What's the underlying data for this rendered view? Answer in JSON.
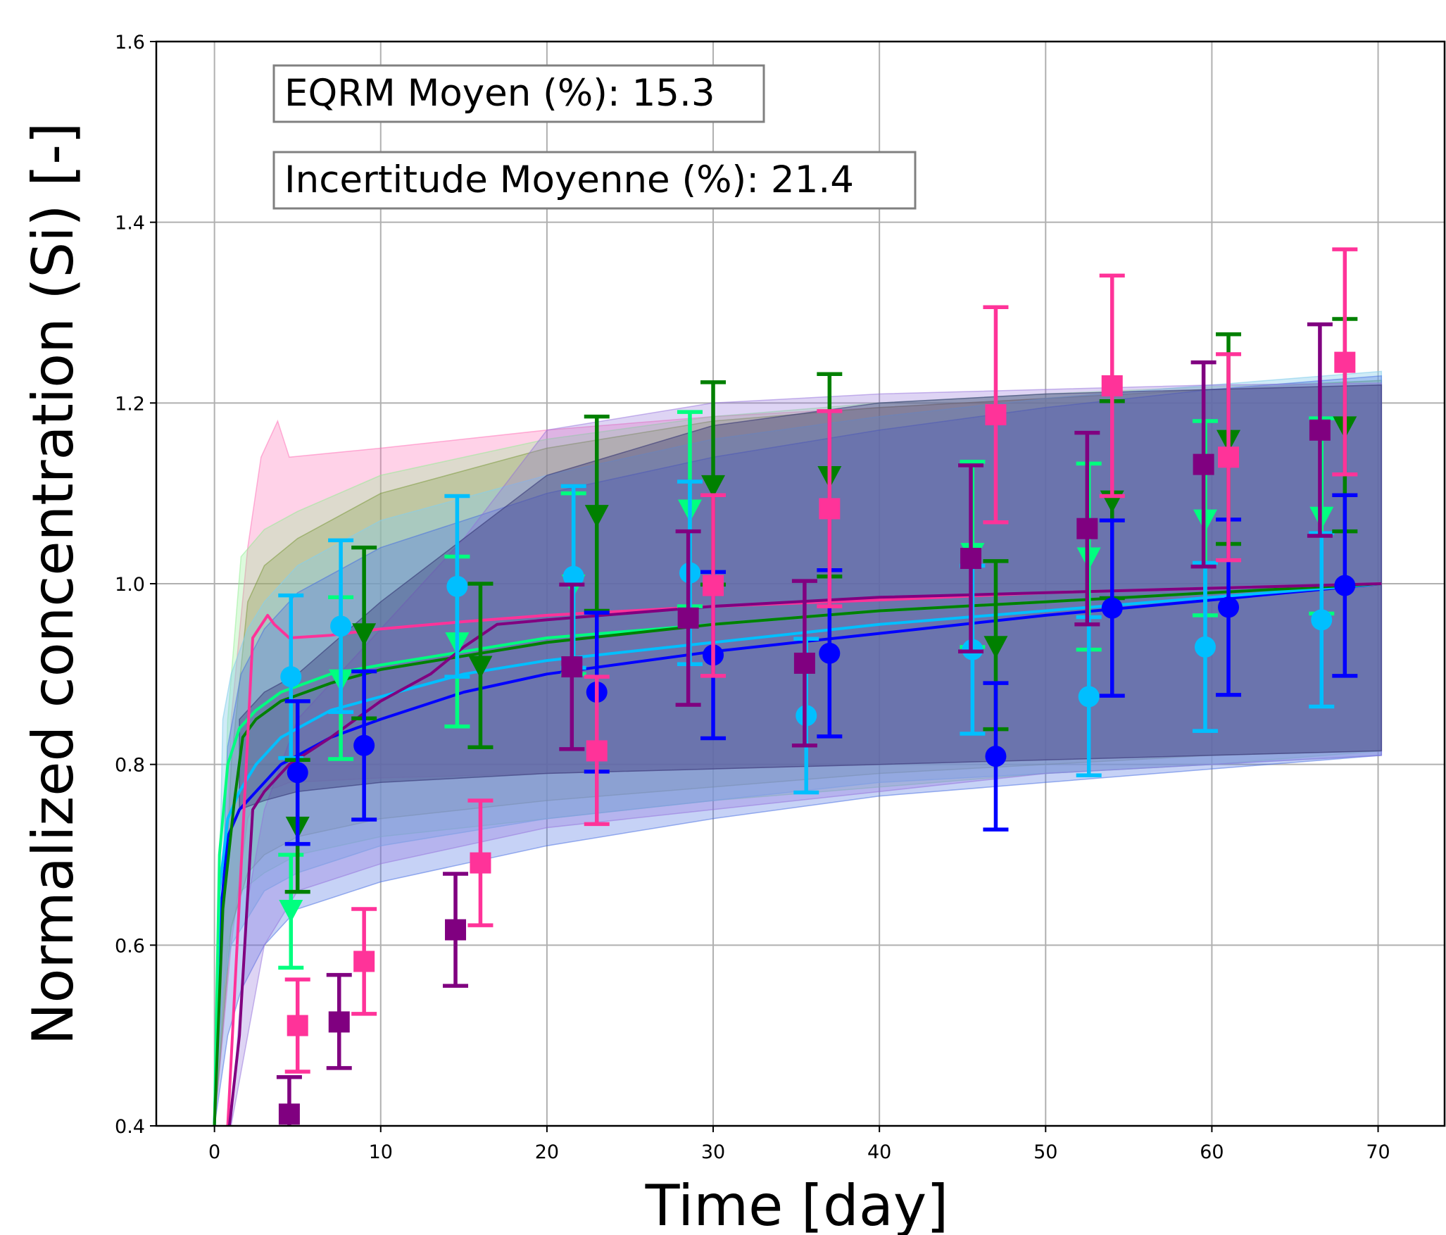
{
  "chart_data": {
    "type": "scatter",
    "xlabel": "Time [day]",
    "ylabel": "Normalized concentration (Si) [-]",
    "xlim": [
      -3.5,
      74
    ],
    "ylim": [
      0.4,
      1.6
    ],
    "x_ticks": [
      0,
      10,
      20,
      30,
      40,
      50,
      60,
      70
    ],
    "y_ticks": [
      0.4,
      0.6,
      0.8,
      1.0,
      1.2,
      1.4,
      1.6
    ],
    "x_tick_labels": [
      "0",
      "10",
      "20",
      "30",
      "40",
      "50",
      "60",
      "70"
    ],
    "y_tick_labels": [
      "0.4",
      "0.6",
      "0.8",
      "1.0",
      "1.2",
      "1.4",
      "1.6"
    ],
    "grid": true,
    "annotations": [
      "EQRM Moyen (%): 15.3",
      "Incertitude Moyenne (%): 21.4"
    ],
    "colors": {
      "pink": "#ff3399",
      "purple": "#800080",
      "green": "#008000",
      "light_green": "#00ff7f",
      "cyan": "#00bfff",
      "blue": "#0000ff"
    },
    "bands": [
      {
        "color": "#ff69b4",
        "opacity": 0.3,
        "x": [
          0,
          1,
          2,
          2.8,
          3.8,
          4.5,
          10,
          20,
          30,
          40,
          50,
          60,
          70.2
        ],
        "upper": [
          0.4,
          0.85,
          1.04,
          1.14,
          1.18,
          1.14,
          1.15,
          1.17,
          1.185,
          1.195,
          1.205,
          1.215,
          1.22
        ],
        "lower": [
          0.4,
          0.6,
          0.74,
          0.77,
          0.775,
          0.78,
          0.785,
          0.79,
          0.795,
          0.8,
          0.805,
          0.81,
          0.815
        ]
      },
      {
        "color": "#90ee90",
        "opacity": 0.3,
        "x": [
          0,
          0.8,
          1.6,
          3,
          5,
          10,
          20,
          30,
          40,
          50,
          60,
          70.2
        ],
        "upper": [
          0.4,
          0.85,
          1.03,
          1.06,
          1.08,
          1.12,
          1.16,
          1.185,
          1.2,
          1.21,
          1.218,
          1.225
        ],
        "lower": [
          0.4,
          0.6,
          0.66,
          0.68,
          0.7,
          0.72,
          0.74,
          0.76,
          0.775,
          0.79,
          0.8,
          0.815
        ]
      },
      {
        "color": "#6b8e23",
        "opacity": 0.25,
        "x": [
          0,
          1,
          2,
          3,
          5,
          10,
          20,
          30,
          40,
          50,
          60,
          70.2
        ],
        "upper": [
          0.4,
          0.8,
          0.98,
          1.02,
          1.05,
          1.1,
          1.15,
          1.18,
          1.195,
          1.205,
          1.215,
          1.225
        ],
        "lower": [
          0.4,
          0.62,
          0.68,
          0.7,
          0.72,
          0.74,
          0.76,
          0.775,
          0.79,
          0.8,
          0.81,
          0.815
        ]
      },
      {
        "color": "#87ceeb",
        "opacity": 0.4,
        "x": [
          0,
          0.5,
          1,
          2,
          3,
          5,
          10,
          20,
          30,
          40,
          50,
          60,
          70.2
        ],
        "upper": [
          0.4,
          0.85,
          0.9,
          0.95,
          0.98,
          1.02,
          1.07,
          1.12,
          1.16,
          1.185,
          1.205,
          1.22,
          1.235
        ],
        "lower": [
          0.4,
          0.55,
          0.6,
          0.63,
          0.66,
          0.68,
          0.71,
          0.74,
          0.76,
          0.78,
          0.79,
          0.8,
          0.81
        ]
      },
      {
        "color": "#4169e1",
        "opacity": 0.3,
        "x": [
          0,
          0.8,
          1.6,
          3,
          5,
          10,
          20,
          30,
          40,
          50,
          60,
          70.2
        ],
        "upper": [
          0.4,
          0.82,
          0.9,
          0.95,
          0.99,
          1.04,
          1.1,
          1.14,
          1.17,
          1.195,
          1.215,
          1.23
        ],
        "lower": [
          0.4,
          0.5,
          0.55,
          0.6,
          0.64,
          0.67,
          0.71,
          0.74,
          0.765,
          0.78,
          0.795,
          0.81
        ]
      },
      {
        "color": "#9370db",
        "opacity": 0.3,
        "x": [
          0,
          1,
          2,
          3,
          5,
          10,
          15,
          20,
          30,
          40,
          50,
          60,
          70.2
        ],
        "upper": [
          0.4,
          0.4,
          0.65,
          0.75,
          0.85,
          0.95,
          1.05,
          1.17,
          1.2,
          1.21,
          1.215,
          1.22,
          1.222
        ],
        "lower": [
          0.4,
          0.4,
          0.5,
          0.6,
          0.66,
          0.69,
          0.71,
          0.73,
          0.75,
          0.77,
          0.79,
          0.8,
          0.81
        ]
      },
      {
        "color": "#2f2f6f",
        "opacity": 0.35,
        "x": [
          1.5,
          3,
          5,
          10,
          15,
          20,
          30,
          40,
          50,
          60,
          70.2
        ],
        "upper": [
          0.85,
          0.88,
          0.9,
          0.98,
          1.05,
          1.12,
          1.175,
          1.2,
          1.21,
          1.215,
          1.22
        ],
        "lower": [
          0.75,
          0.76,
          0.77,
          0.78,
          0.785,
          0.79,
          0.795,
          0.8,
          0.805,
          0.81,
          0.815
        ]
      }
    ],
    "model_lines": [
      {
        "color": "#0000ff",
        "x": [
          0,
          0.3,
          0.8,
          1.5,
          2.5,
          4,
          7,
          10,
          15,
          20,
          30,
          40,
          50,
          60,
          70.2
        ],
        "y": [
          0.4,
          0.62,
          0.72,
          0.75,
          0.77,
          0.8,
          0.83,
          0.85,
          0.88,
          0.9,
          0.925,
          0.945,
          0.965,
          0.982,
          1.0
        ]
      },
      {
        "color": "#00bfff",
        "x": [
          0,
          0.3,
          0.8,
          1.5,
          2.5,
          4,
          7,
          10,
          15,
          20,
          30,
          40,
          50,
          60,
          70.2
        ],
        "y": [
          0.4,
          0.66,
          0.74,
          0.77,
          0.8,
          0.83,
          0.86,
          0.875,
          0.9,
          0.915,
          0.935,
          0.955,
          0.97,
          0.985,
          1.0
        ]
      },
      {
        "color": "#00ff7f",
        "x": [
          0,
          0.3,
          0.8,
          1.5,
          2.5,
          4,
          7,
          10,
          15,
          20,
          30,
          40,
          50,
          60,
          70.2
        ],
        "y": [
          0.4,
          0.7,
          0.8,
          0.84,
          0.86,
          0.88,
          0.9,
          0.91,
          0.925,
          0.94,
          0.955,
          0.97,
          0.98,
          0.99,
          1.0
        ]
      },
      {
        "color": "#008000",
        "x": [
          0,
          0.5,
          1.2,
          1.7,
          2.5,
          4,
          7,
          10,
          15,
          20,
          30,
          40,
          50,
          60,
          70.2
        ],
        "y": [
          0.4,
          0.64,
          0.76,
          0.83,
          0.85,
          0.87,
          0.89,
          0.905,
          0.92,
          0.935,
          0.955,
          0.97,
          0.98,
          0.99,
          1.0
        ]
      },
      {
        "color": "#ff3399",
        "x": [
          0.8,
          1.5,
          2.3,
          3.2,
          3.6,
          4.5,
          7,
          10,
          15,
          20,
          30,
          40,
          50,
          60,
          70.2
        ],
        "y": [
          0.4,
          0.65,
          0.94,
          0.965,
          0.955,
          0.94,
          0.943,
          0.95,
          0.958,
          0.965,
          0.975,
          0.982,
          0.99,
          0.995,
          1.0
        ]
      },
      {
        "color": "#800080",
        "x": [
          0.9,
          1.5,
          2.3,
          3,
          4.5,
          7,
          10,
          13,
          15,
          17,
          20,
          30,
          40,
          50,
          60,
          70.2
        ],
        "y": [
          0.4,
          0.5,
          0.75,
          0.77,
          0.8,
          0.83,
          0.87,
          0.9,
          0.93,
          0.955,
          0.96,
          0.975,
          0.985,
          0.99,
          0.995,
          1.0
        ]
      }
    ],
    "series": [
      {
        "color": "#00ff7f",
        "marker": "triangle-down",
        "points": [
          [
            4.6,
            0.64,
            0.575,
            0.7
          ],
          [
            7.6,
            0.895,
            0.806,
            0.985
          ],
          [
            14.6,
            0.936,
            0.842,
            1.03
          ],
          [
            21.6,
            1.0,
            0.9,
            1.1
          ],
          [
            28.6,
            1.083,
            0.975,
            1.19
          ],
          [
            45.6,
            1.035,
            0.93,
            1.135
          ],
          [
            52.6,
            1.03,
            0.927,
            1.133
          ],
          [
            59.6,
            1.072,
            0.965,
            1.18
          ],
          [
            66.6,
            1.075,
            0.967,
            1.183
          ]
        ]
      },
      {
        "color": "#00bfff",
        "marker": "circle",
        "points": [
          [
            4.6,
            0.897,
            0.807,
            0.987
          ],
          [
            7.6,
            0.953,
            0.858,
            1.048
          ],
          [
            14.6,
            0.997,
            0.897,
            1.097
          ],
          [
            21.6,
            1.008,
            0.907,
            1.108
          ],
          [
            28.6,
            1.012,
            0.911,
            1.113
          ],
          [
            35.6,
            0.854,
            0.769,
            0.939
          ],
          [
            45.6,
            0.927,
            0.834,
            1.02
          ],
          [
            52.6,
            0.875,
            0.788,
            0.963
          ],
          [
            59.6,
            0.93,
            0.837,
            1.023
          ],
          [
            66.6,
            0.96,
            0.864,
            1.056
          ]
        ]
      },
      {
        "color": "#008000",
        "marker": "triangle-down",
        "points": [
          [
            5,
            0.732,
            0.659,
            0.805
          ],
          [
            9,
            0.946,
            0.851,
            1.04
          ],
          [
            16,
            0.91,
            0.819,
            1.0
          ],
          [
            23,
            1.077,
            0.97,
            1.185
          ],
          [
            30,
            1.11,
            0.999,
            1.223
          ],
          [
            37,
            1.12,
            1.008,
            1.232
          ],
          [
            47,
            0.932,
            0.839,
            1.025
          ],
          [
            54,
            1.093,
            0.984,
            1.202
          ],
          [
            61,
            1.16,
            1.044,
            1.276
          ],
          [
            68,
            1.175,
            1.058,
            1.293
          ]
        ]
      },
      {
        "color": "#0000ff",
        "marker": "circle",
        "points": [
          [
            5,
            0.791,
            0.712,
            0.87
          ],
          [
            9,
            0.821,
            0.739,
            0.903
          ],
          [
            23,
            0.88,
            0.792,
            0.968
          ],
          [
            30,
            0.921,
            0.829,
            1.013
          ],
          [
            37,
            0.923,
            0.831,
            1.015
          ],
          [
            47,
            0.809,
            0.728,
            0.89
          ],
          [
            54,
            0.973,
            0.876,
            1.07
          ],
          [
            61,
            0.974,
            0.877,
            1.071
          ],
          [
            68,
            0.998,
            0.898,
            1.098
          ]
        ]
      },
      {
        "color": "#800080",
        "marker": "square",
        "points": [
          [
            4.5,
            0.413,
            0.372,
            0.454
          ],
          [
            7.5,
            0.515,
            0.464,
            0.567
          ],
          [
            14.5,
            0.617,
            0.555,
            0.679
          ],
          [
            21.5,
            0.908,
            0.817,
            0.999
          ],
          [
            28.5,
            0.962,
            0.866,
            1.058
          ],
          [
            35.5,
            0.912,
            0.821,
            1.003
          ],
          [
            45.5,
            1.028,
            0.925,
            1.131
          ],
          [
            52.5,
            1.061,
            0.955,
            1.167
          ],
          [
            59.5,
            1.132,
            1.019,
            1.245
          ],
          [
            66.5,
            1.17,
            1.053,
            1.287
          ]
        ]
      },
      {
        "color": "#ff3399",
        "marker": "square",
        "points": [
          [
            5,
            0.511,
            0.46,
            0.562
          ],
          [
            9,
            0.582,
            0.524,
            0.64
          ],
          [
            16,
            0.691,
            0.622,
            0.76
          ],
          [
            23,
            0.815,
            0.734,
            0.897
          ],
          [
            30,
            0.998,
            0.898,
            1.098
          ],
          [
            37,
            1.083,
            0.975,
            1.191
          ],
          [
            47,
            1.187,
            1.068,
            1.306
          ],
          [
            54,
            1.219,
            1.097,
            1.341
          ],
          [
            61,
            1.14,
            1.026,
            1.254
          ],
          [
            68,
            1.245,
            1.121,
            1.37
          ]
        ]
      }
    ]
  }
}
